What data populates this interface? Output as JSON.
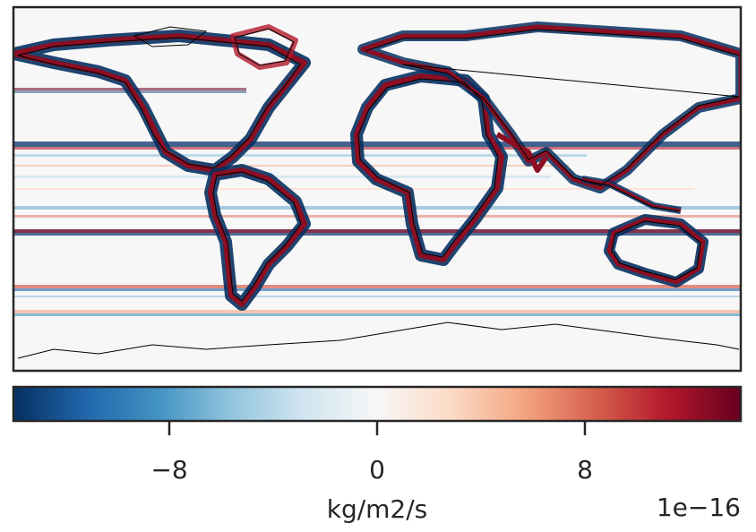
{
  "figure": {
    "colorbar": {
      "label": "kg/m2/s",
      "offset_text": "1e−16",
      "colormap": "RdBu_r",
      "ticks": [
        "−8",
        "0",
        "8"
      ],
      "tick_values": [
        -8,
        0,
        8
      ],
      "range": [
        -14,
        14
      ],
      "colors": [
        "#053061",
        "#2166ac",
        "#4393c3",
        "#92c5de",
        "#d1e5f0",
        "#f7f7f7",
        "#fddbc7",
        "#f4a582",
        "#d6604d",
        "#b2182b",
        "#67001f"
      ]
    },
    "map": {
      "projection": "PlateCarree",
      "background": "#f7f7f7",
      "coastline_color": "#000000",
      "frame_color": "#262626"
    }
  }
}
